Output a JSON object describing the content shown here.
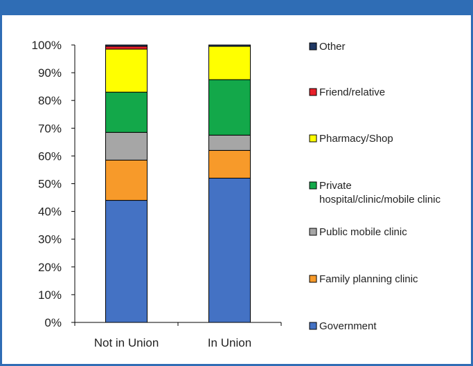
{
  "header": {
    "title": "",
    "color": "#2f6db5"
  },
  "chart_data": {
    "type": "bar",
    "stacked": true,
    "categories": [
      "Not in Union",
      "In Union"
    ],
    "y_ticks": [
      "0%",
      "10%",
      "20%",
      "30%",
      "40%",
      "50%",
      "60%",
      "70%",
      "80%",
      "90%",
      "100%"
    ],
    "ylim": [
      0,
      100
    ],
    "xlabel": "",
    "ylabel": "",
    "legend_position": "right",
    "series": [
      {
        "name": "Government",
        "color": "#4472c4",
        "values": [
          44,
          52
        ]
      },
      {
        "name": "Family planning clinic",
        "color": "#f79a2a",
        "values": [
          14.5,
          10
        ]
      },
      {
        "name": "Public mobile clinic",
        "color": "#a6a6a6",
        "values": [
          10,
          5.5
        ]
      },
      {
        "name": "Private hospital/clinic/mobile clinic",
        "legend_lines": [
          "Private",
          "hospital/clinic/mobile clinic"
        ],
        "color": "#13a84a",
        "values": [
          14.5,
          20
        ]
      },
      {
        "name": "Pharmacy/Shop",
        "color": "#ffff00",
        "values": [
          15.5,
          12
        ]
      },
      {
        "name": "Friend/relative",
        "color": "#e8202a",
        "values": [
          1,
          0
        ]
      },
      {
        "name": "Other",
        "color": "#1f3864",
        "values": [
          0.5,
          0.5
        ]
      }
    ]
  }
}
